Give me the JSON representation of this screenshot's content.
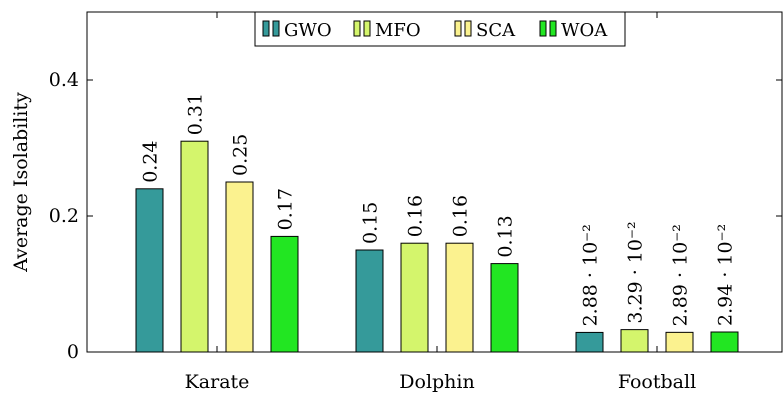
{
  "chart_data": {
    "type": "bar",
    "title": "",
    "xlabel": "",
    "ylabel": "Average Isolability",
    "ylim": [
      0,
      0.5
    ],
    "yticks": [
      "0",
      "0.2",
      "0.4"
    ],
    "ytick_values": [
      0,
      0.2,
      0.4
    ],
    "categories": [
      "Karate",
      "Dolphin",
      "Football"
    ],
    "legend_position": "top-center",
    "grid": false,
    "series": [
      {
        "name": "GWO",
        "color": "#359a9a",
        "values": [
          0.24,
          0.15,
          0.0288
        ],
        "labels": [
          "0.24",
          "0.15",
          "2.88 · 10⁻²"
        ]
      },
      {
        "name": "MFO",
        "color": "#d4f56c",
        "values": [
          0.31,
          0.16,
          0.0329
        ],
        "labels": [
          "0.31",
          "0.16",
          "3.29 · 10⁻²"
        ]
      },
      {
        "name": "SCA",
        "color": "#fbf28f",
        "values": [
          0.25,
          0.16,
          0.0289
        ],
        "labels": [
          "0.25",
          "0.16",
          "2.89 · 10⁻²"
        ]
      },
      {
        "name": "WOA",
        "color": "#22e622",
        "values": [
          0.17,
          0.13,
          0.0294
        ],
        "labels": [
          "0.17",
          "0.13",
          "2.94 · 10⁻²"
        ]
      }
    ],
    "highlight_series": "MFO",
    "highlight_color": "#2222ee"
  }
}
